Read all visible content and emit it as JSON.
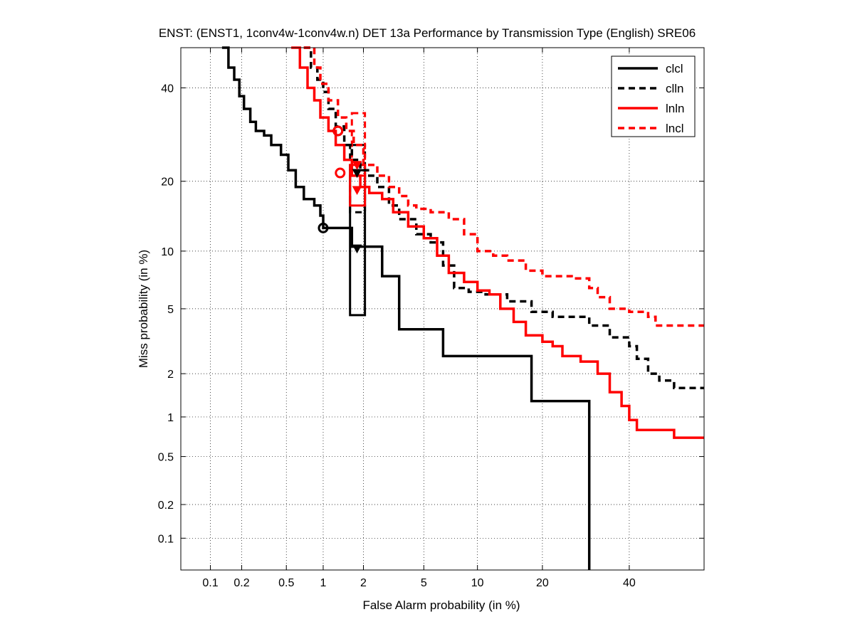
{
  "chart_data": {
    "type": "line",
    "title": "ENST: (ENST1, 1conv4w-1conv4w.n) DET 13a Performance by Transmission Type (English) SRE06",
    "xlabel": "False Alarm probability (in %)",
    "ylabel": "Miss probability (in %)",
    "x_scale": "probit",
    "y_scale": "probit",
    "xlim": [
      0.05,
      60
    ],
    "ylim": [
      0.05,
      50
    ],
    "x_ticks": [
      0.1,
      0.2,
      0.5,
      1,
      2,
      5,
      10,
      20,
      40
    ],
    "x_tick_labels": [
      "0.1",
      "0.2",
      "0.5",
      "1",
      "2",
      "5",
      "10",
      "20",
      "40"
    ],
    "y_ticks": [
      0.1,
      0.2,
      0.5,
      1,
      2,
      5,
      10,
      20,
      40
    ],
    "y_tick_labels": [
      "0.1",
      "0.2",
      "0.5",
      "1",
      "2",
      "5",
      "10",
      "20",
      "40"
    ],
    "grid": true,
    "legend_position": "top-right",
    "series": [
      {
        "name": "clcl",
        "color": "#000000",
        "dash": "solid",
        "points": [
          [
            0.13,
            50
          ],
          [
            0.15,
            45
          ],
          [
            0.17,
            42
          ],
          [
            0.19,
            38
          ],
          [
            0.21,
            35
          ],
          [
            0.24,
            32
          ],
          [
            0.27,
            30
          ],
          [
            0.32,
            29
          ],
          [
            0.37,
            27
          ],
          [
            0.45,
            25
          ],
          [
            0.52,
            22
          ],
          [
            0.6,
            19
          ],
          [
            0.7,
            17
          ],
          [
            0.85,
            16
          ],
          [
            0.95,
            14.5
          ],
          [
            1.0,
            12.8
          ],
          [
            1.6,
            12.8
          ],
          [
            1.65,
            10.5
          ],
          [
            2.5,
            10.5
          ],
          [
            2.7,
            7.5
          ],
          [
            3.5,
            3.8
          ],
          [
            6.5,
            2.6
          ],
          [
            18,
            1.3
          ],
          [
            30,
            1.3
          ],
          [
            30,
            0.05
          ]
        ],
        "min_dcf_marker": [
          1.0,
          12.8
        ],
        "act_dcf_marker": [
          1.8,
          10.3
        ],
        "conf_box": {
          "x": [
            1.6,
            2.05
          ],
          "y": [
            4.6,
            22
          ]
        }
      },
      {
        "name": "clln",
        "color": "#000000",
        "dash": "dashed",
        "points": [
          [
            0.7,
            50
          ],
          [
            0.8,
            45
          ],
          [
            0.9,
            42
          ],
          [
            1.0,
            39
          ],
          [
            1.1,
            35
          ],
          [
            1.25,
            31
          ],
          [
            1.45,
            27
          ],
          [
            1.65,
            24
          ],
          [
            1.9,
            22
          ],
          [
            2.2,
            21
          ],
          [
            2.5,
            19
          ],
          [
            3.0,
            16
          ],
          [
            3.5,
            14
          ],
          [
            4.5,
            12
          ],
          [
            5.5,
            11
          ],
          [
            6.5,
            8.5
          ],
          [
            7.5,
            6.5
          ],
          [
            9.0,
            6.2
          ],
          [
            11,
            6.0
          ],
          [
            14,
            5.5
          ],
          [
            18,
            4.8
          ],
          [
            22,
            4.5
          ],
          [
            30,
            4.0
          ],
          [
            35,
            3.4
          ],
          [
            40,
            3.0
          ],
          [
            42,
            2.5
          ],
          [
            45,
            2.0
          ],
          [
            48,
            1.8
          ],
          [
            52,
            1.6
          ],
          [
            60,
            1.6
          ]
        ],
        "min_dcf_marker": [
          1.3,
          30
        ],
        "act_dcf_marker": [
          1.8,
          21.5
        ],
        "conf_box": {
          "x": [
            1.6,
            2.05
          ],
          "y": [
            15,
            27
          ]
        }
      },
      {
        "name": "lnln",
        "color": "#ff0000",
        "dash": "solid",
        "points": [
          [
            0.55,
            50
          ],
          [
            0.65,
            45
          ],
          [
            0.75,
            40
          ],
          [
            0.85,
            37
          ],
          [
            0.95,
            33
          ],
          [
            1.1,
            30
          ],
          [
            1.25,
            27
          ],
          [
            1.45,
            24
          ],
          [
            1.65,
            21
          ],
          [
            1.9,
            19
          ],
          [
            2.2,
            18
          ],
          [
            2.7,
            17
          ],
          [
            3.2,
            15
          ],
          [
            4.0,
            13
          ],
          [
            5.0,
            11.5
          ],
          [
            6.0,
            9.5
          ],
          [
            7.0,
            7.8
          ],
          [
            8.5,
            7.0
          ],
          [
            10,
            6.3
          ],
          [
            11.5,
            6.0
          ],
          [
            13,
            5.0
          ],
          [
            15,
            4.2
          ],
          [
            17,
            3.5
          ],
          [
            20,
            3.2
          ],
          [
            22,
            3.0
          ],
          [
            24,
            2.6
          ],
          [
            28,
            2.4
          ],
          [
            32,
            2.0
          ],
          [
            35,
            1.5
          ],
          [
            38,
            1.2
          ],
          [
            40,
            0.95
          ],
          [
            42,
            0.8
          ],
          [
            50,
            0.8
          ],
          [
            52,
            0.7
          ],
          [
            60,
            0.7
          ]
        ],
        "min_dcf_marker": [
          1.35,
          21.5
        ],
        "act_dcf_marker": [
          1.8,
          18.5
        ],
        "conf_box": {
          "x": [
            1.6,
            2.05
          ],
          "y": [
            16,
            23
          ]
        }
      },
      {
        "name": "lncl",
        "color": "#ff0000",
        "dash": "dashed",
        "points": [
          [
            0.7,
            50
          ],
          [
            0.85,
            45
          ],
          [
            0.95,
            41
          ],
          [
            1.1,
            37
          ],
          [
            1.3,
            33
          ],
          [
            1.5,
            30
          ],
          [
            1.7,
            27
          ],
          [
            2.0,
            23
          ],
          [
            2.5,
            21
          ],
          [
            3.0,
            19
          ],
          [
            3.5,
            17.5
          ],
          [
            4.0,
            16
          ],
          [
            4.5,
            15.5
          ],
          [
            5.5,
            15
          ],
          [
            7.0,
            14
          ],
          [
            8.5,
            12
          ],
          [
            10,
            10
          ],
          [
            12,
            9.5
          ],
          [
            14,
            9.0
          ],
          [
            17,
            8.0
          ],
          [
            20,
            7.5
          ],
          [
            26,
            7.3
          ],
          [
            30,
            6.5
          ],
          [
            32,
            5.8
          ],
          [
            35,
            5.0
          ],
          [
            40,
            4.8
          ],
          [
            45,
            4.5
          ],
          [
            47,
            4.0
          ],
          [
            60,
            4.0
          ]
        ],
        "min_dcf_marker": [
          1.3,
          30
        ],
        "act_dcf_marker": [
          1.8,
          23
        ],
        "conf_box": {
          "x": [
            1.65,
            2.05
          ],
          "y": [
            21,
            34
          ]
        }
      }
    ]
  }
}
